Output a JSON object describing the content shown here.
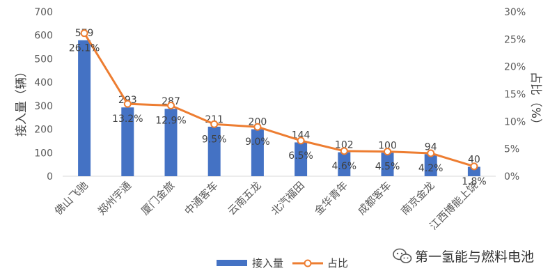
{
  "chart_data": {
    "type": "bar",
    "categories": [
      "佛山飞驰",
      "郑州宇通",
      "厦门金旅",
      "中通客车",
      "云南五龙",
      "北汽福田",
      "金华青年",
      "成都客车",
      "南京金龙",
      "江西博能上饶"
    ],
    "series": [
      {
        "name": "接入量",
        "type": "bar",
        "axis": "left",
        "values": [
          579,
          293,
          287,
          211,
          200,
          144,
          102,
          100,
          94,
          40
        ],
        "labels": [
          "579",
          "293",
          "287",
          "211",
          "200",
          "144",
          "102",
          "100",
          "94",
          "40"
        ],
        "color": "#4472C4"
      },
      {
        "name": "占比",
        "type": "line",
        "axis": "right",
        "values": [
          26.1,
          13.2,
          12.9,
          9.5,
          9.0,
          6.5,
          4.6,
          4.5,
          4.2,
          1.8
        ],
        "labels": [
          "26.1%",
          "13.2%",
          "12.9%",
          "9.5%",
          "9.0%",
          "6.5%",
          "4.6%",
          "4.5%",
          "4.2%",
          "1.8%"
        ],
        "color": "#ED7D31"
      }
    ],
    "ylabel": "接入量（辆）",
    "ylim": [
      0,
      700
    ],
    "yticks": [
      "0",
      "100",
      "200",
      "300",
      "400",
      "500",
      "600",
      "700"
    ],
    "y2label": "占比（%）",
    "y2lim": [
      0,
      30
    ],
    "y2ticks": [
      "0%",
      "5%",
      "10%",
      "15%",
      "20%",
      "25%",
      "30%"
    ],
    "grid": false,
    "legend": "bottom-center"
  },
  "watermark": {
    "text": "第一氢能与燃料电池",
    "icon": "wechat-icon"
  }
}
